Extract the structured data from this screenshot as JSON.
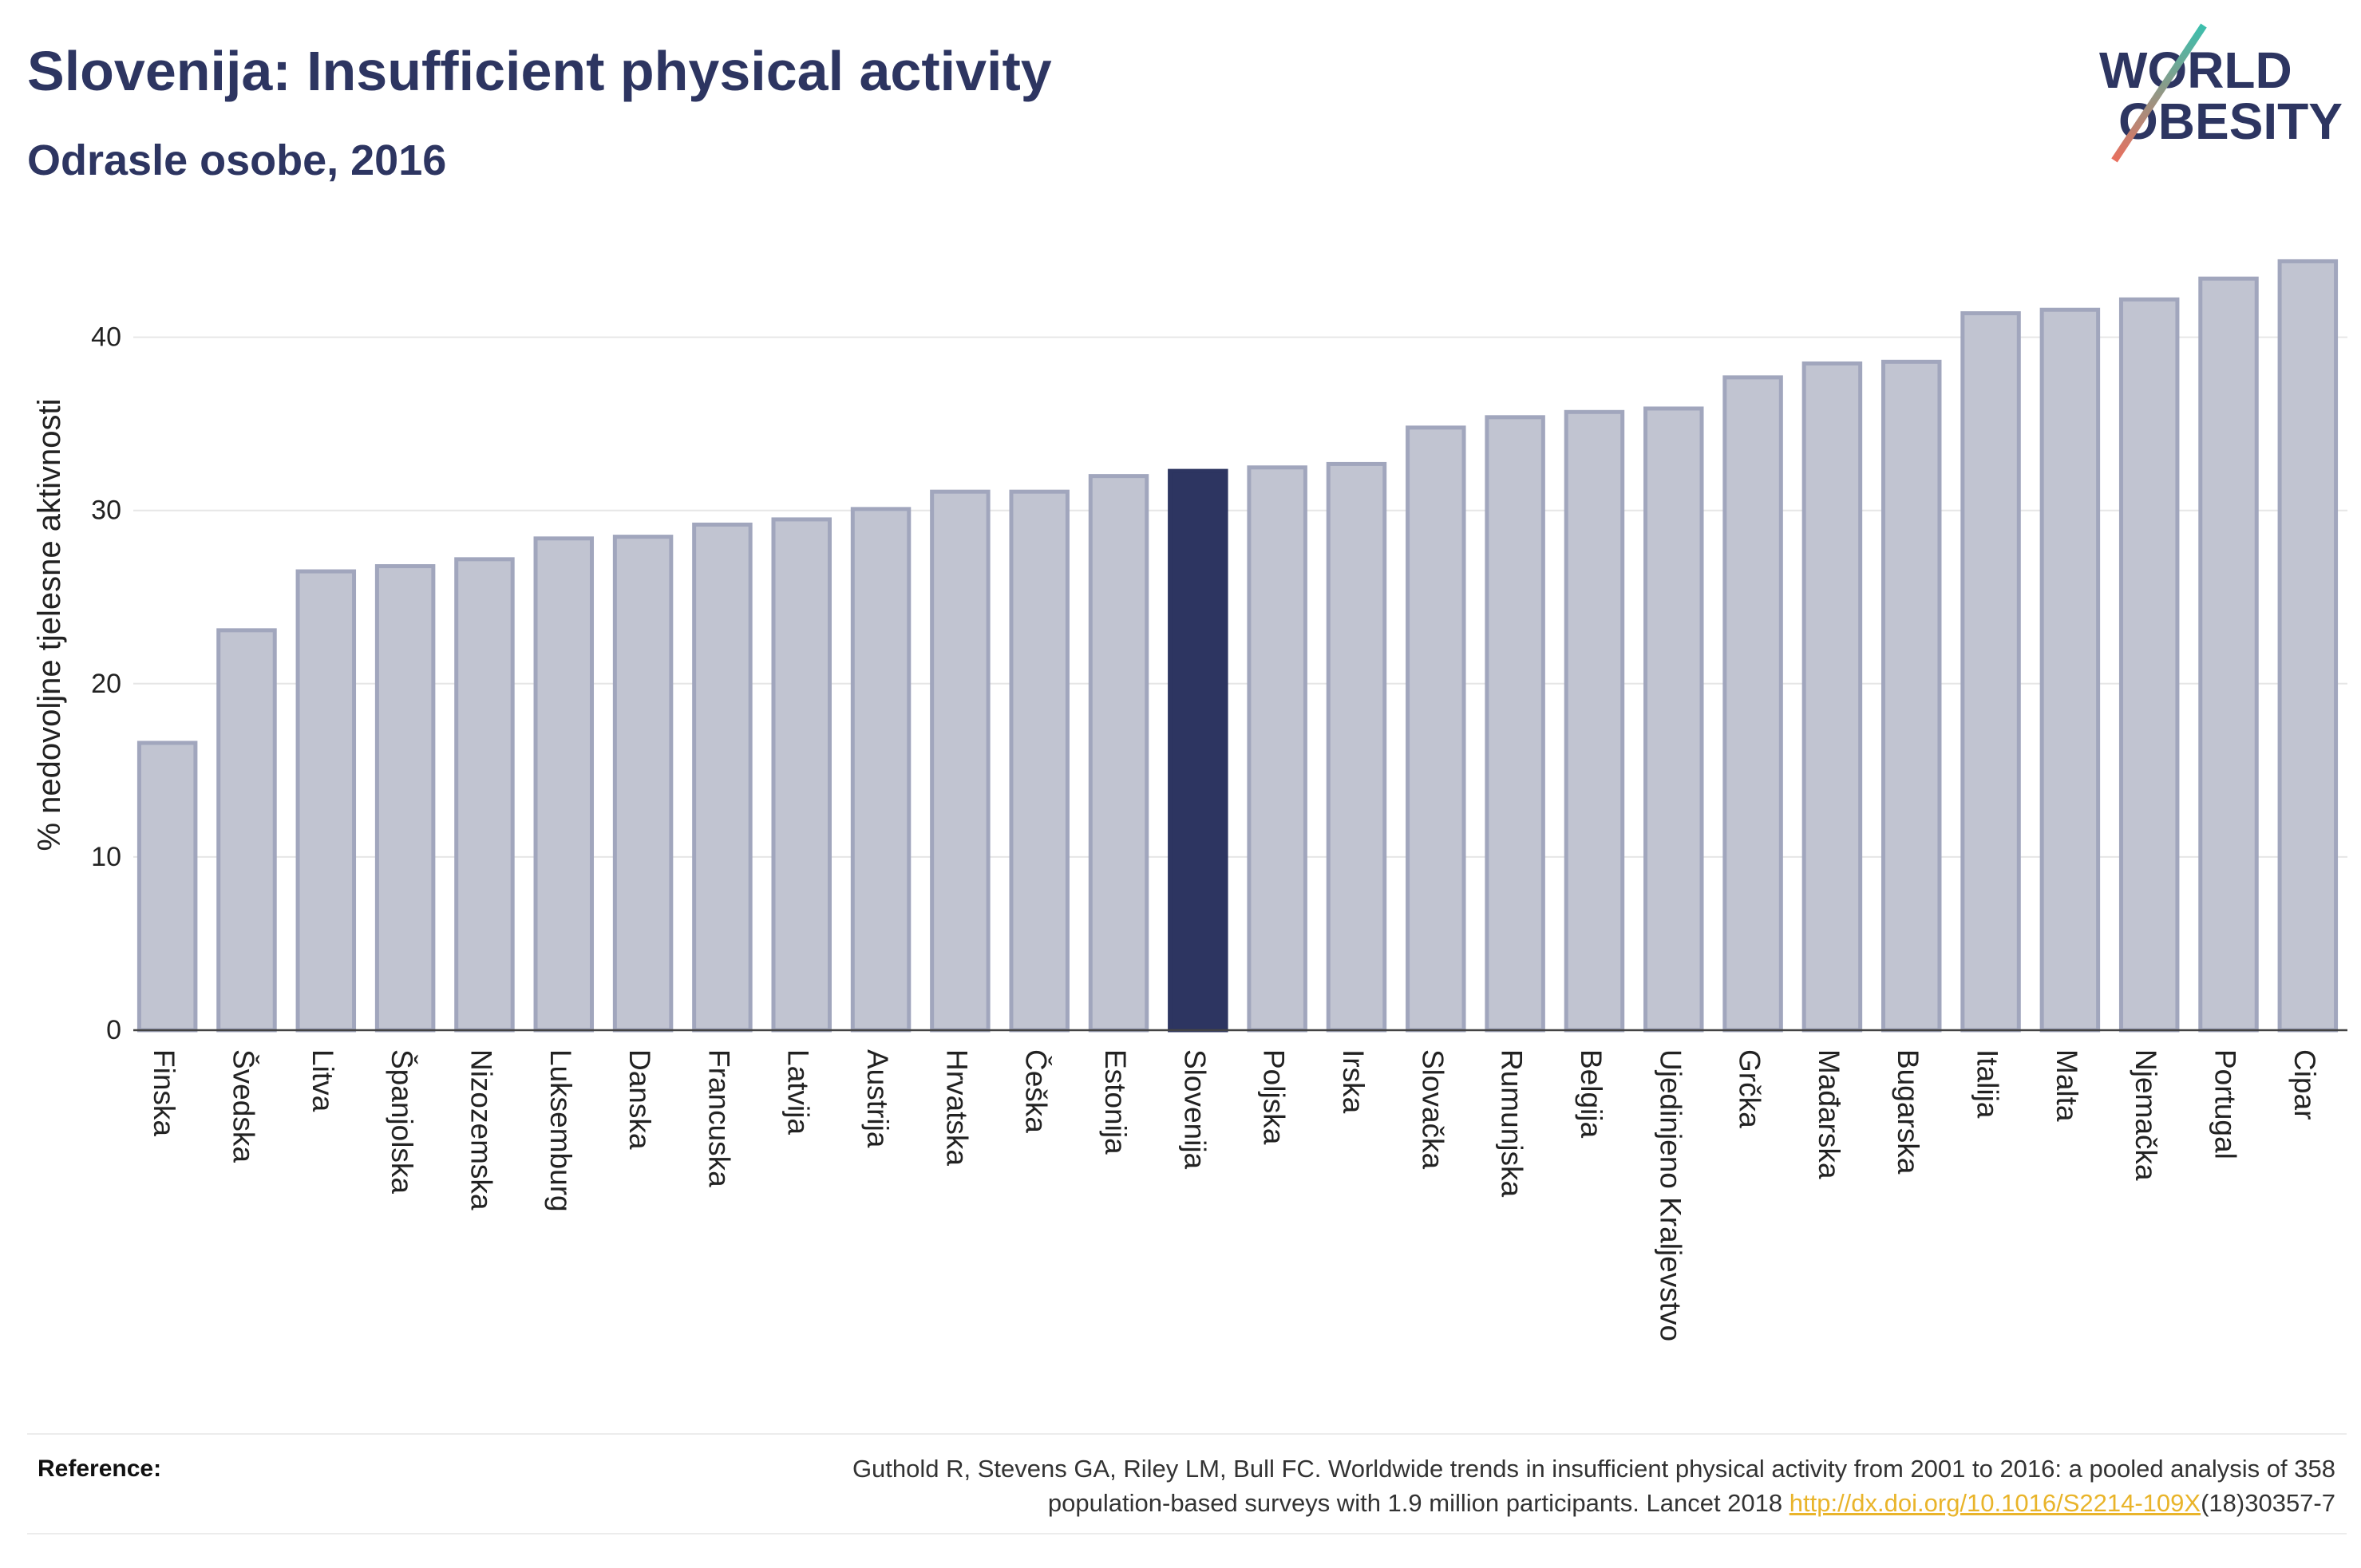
{
  "chart_data": {
    "type": "bar",
    "title": "Slovenija: Insufficient physical activity",
    "subtitle": "Odrasle osobe, 2016",
    "ylabel": "% nedovoljne tjelesne aktivnosti",
    "categories": [
      "Finska",
      "Švedska",
      "Litva",
      "Španjolska",
      "Nizozemska",
      "Luksemburg",
      "Danska",
      "Francuska",
      "Latvija",
      "Austrija",
      "Hrvatska",
      "Češka",
      "Estonija",
      "Slovenija",
      "Poljska",
      "Irska",
      "Slovačka",
      "Rumunjska",
      "Belgija",
      "Ujedinjeno Kraljevstvo",
      "Grčka",
      "Mađarska",
      "Bugarska",
      "Italija",
      "Malta",
      "Njemačka",
      "Portugal",
      "Cipar"
    ],
    "values": [
      16.7,
      23.2,
      26.6,
      26.9,
      27.3,
      28.5,
      28.6,
      29.3,
      29.6,
      30.2,
      31.2,
      31.2,
      32.1,
      32.4,
      32.6,
      32.8,
      34.9,
      35.5,
      35.8,
      36.0,
      37.8,
      38.6,
      38.7,
      41.5,
      41.7,
      42.3,
      43.5,
      44.5
    ],
    "highlight_index": 13,
    "yticks": [
      0,
      10,
      20,
      30,
      40
    ],
    "ylim": [
      0,
      46.8
    ],
    "grid": true,
    "colors": {
      "bar": "#c1c4d1",
      "bar_outline": "#a1a6bd",
      "highlight": "#2d3561",
      "grid": "#e6e6e6",
      "axis": "#444444"
    }
  },
  "logo": {
    "line1": "WORLD",
    "line2": "OBESITY",
    "colors": {
      "text": "#2d3561",
      "slash_top": "#3bbfad",
      "slash_bottom": "#e8705f"
    }
  },
  "reference": {
    "label": "Reference:",
    "line1": "Guthold R, Stevens GA, Riley LM, Bull FC. Worldwide trends in insufficient physical activity from 2001 to 2016: a pooled analysis of 358",
    "line2": "population-based surveys with 1.9 million participants. Lancet 2018 ",
    "link": "http://dx.doi.org/10.1016/S2214-109X",
    "line2_suffix": "(18)30357-7",
    "link_color": "#e9b42a"
  }
}
